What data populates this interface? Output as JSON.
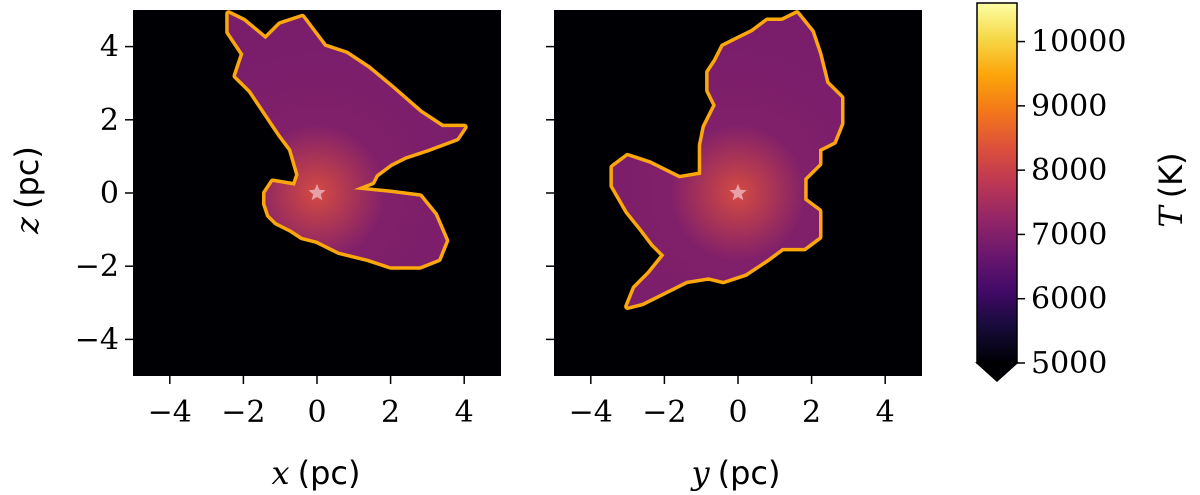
{
  "chart_data": [
    {
      "type": "heatmap",
      "panel": "left",
      "xlabel_var": "x",
      "xlabel_unit": "(pc)",
      "ylabel_var": "z",
      "ylabel_unit": "(pc)",
      "xlim": [
        -5,
        5
      ],
      "ylim": [
        -5,
        5
      ],
      "xticks": [
        -4,
        -2,
        0,
        2,
        4
      ],
      "yticks": [
        -4,
        -2,
        0,
        2,
        4
      ],
      "xtick_labels": [
        "−4",
        "−2",
        "0",
        "2",
        "4"
      ],
      "ytick_labels": [
        "−4",
        "−2",
        "0",
        "2",
        "4"
      ],
      "background_value": 5000,
      "source_marker": {
        "x": 0,
        "y": 0,
        "symbol": "star",
        "color": "#e8a0a8"
      },
      "region": {
        "interior_value": 7000,
        "edge_value": 9500,
        "outline": [
          [
            -2.4,
            4.9
          ],
          [
            -2.0,
            4.7
          ],
          [
            -1.4,
            4.2
          ],
          [
            -1.0,
            4.6
          ],
          [
            -0.4,
            4.8
          ],
          [
            0.2,
            4.0
          ],
          [
            0.8,
            3.8
          ],
          [
            1.4,
            3.4
          ],
          [
            2.0,
            2.9
          ],
          [
            2.8,
            2.2
          ],
          [
            3.4,
            1.8
          ],
          [
            4.0,
            1.8
          ],
          [
            3.8,
            1.5
          ],
          [
            3.0,
            1.2
          ],
          [
            2.4,
            1.0
          ],
          [
            2.0,
            0.8
          ],
          [
            1.6,
            0.5
          ],
          [
            1.5,
            0.3
          ],
          [
            1.0,
            0.1
          ],
          [
            2.0,
            0.0
          ],
          [
            2.8,
            -0.1
          ],
          [
            3.2,
            -0.6
          ],
          [
            3.5,
            -1.3
          ],
          [
            3.3,
            -1.8
          ],
          [
            2.8,
            -2.0
          ],
          [
            2.0,
            -2.0
          ],
          [
            1.4,
            -1.8
          ],
          [
            0.6,
            -1.6
          ],
          [
            0.0,
            -1.3
          ],
          [
            -0.4,
            -1.2
          ],
          [
            -0.7,
            -1.0
          ],
          [
            -1.1,
            -0.8
          ],
          [
            -1.3,
            -0.6
          ],
          [
            -1.4,
            -0.3
          ],
          [
            -1.4,
            0.0
          ],
          [
            -1.2,
            0.3
          ],
          [
            -0.6,
            0.2
          ],
          [
            -0.5,
            0.5
          ],
          [
            -0.7,
            1.2
          ],
          [
            -1.0,
            1.6
          ],
          [
            -1.4,
            2.2
          ],
          [
            -1.8,
            2.8
          ],
          [
            -2.2,
            3.2
          ],
          [
            -2.0,
            3.8
          ],
          [
            -2.4,
            4.4
          ]
        ]
      }
    },
    {
      "type": "heatmap",
      "panel": "right",
      "xlabel_var": "y",
      "xlabel_unit": "(pc)",
      "xlim": [
        -5,
        5
      ],
      "ylim": [
        -5,
        5
      ],
      "xticks": [
        -4,
        -2,
        0,
        2,
        4
      ],
      "xtick_labels": [
        "−4",
        "−2",
        "0",
        "2",
        "4"
      ],
      "background_value": 5000,
      "source_marker": {
        "x": 0,
        "y": 0,
        "symbol": "star",
        "color": "#e8a0a8"
      },
      "region": {
        "interior_value": 7000,
        "edge_value": 9500,
        "outline": [
          [
            0.0,
            4.2
          ],
          [
            0.4,
            4.4
          ],
          [
            0.8,
            4.7
          ],
          [
            1.2,
            4.7
          ],
          [
            1.6,
            4.9
          ],
          [
            2.0,
            4.4
          ],
          [
            2.2,
            3.8
          ],
          [
            2.4,
            3.0
          ],
          [
            2.8,
            2.6
          ],
          [
            2.8,
            1.9
          ],
          [
            2.6,
            1.4
          ],
          [
            2.2,
            1.2
          ],
          [
            2.2,
            0.8
          ],
          [
            1.8,
            0.4
          ],
          [
            1.8,
            -0.2
          ],
          [
            2.2,
            -0.5
          ],
          [
            2.2,
            -1.2
          ],
          [
            1.8,
            -1.5
          ],
          [
            1.2,
            -1.5
          ],
          [
            0.8,
            -1.8
          ],
          [
            0.2,
            -2.2
          ],
          [
            -0.4,
            -2.4
          ],
          [
            -0.8,
            -2.3
          ],
          [
            -1.4,
            -2.4
          ],
          [
            -2.0,
            -2.7
          ],
          [
            -2.6,
            -3.0
          ],
          [
            -3.0,
            -3.1
          ],
          [
            -2.8,
            -2.6
          ],
          [
            -2.4,
            -2.2
          ],
          [
            -2.0,
            -1.7
          ],
          [
            -2.3,
            -1.4
          ],
          [
            -2.6,
            -1.0
          ],
          [
            -3.0,
            -0.5
          ],
          [
            -3.4,
            0.2
          ],
          [
            -3.4,
            0.7
          ],
          [
            -3.0,
            1.0
          ],
          [
            -2.4,
            0.8
          ],
          [
            -1.6,
            0.4
          ],
          [
            -1.0,
            0.5
          ],
          [
            -1.0,
            1.3
          ],
          [
            -0.9,
            1.8
          ],
          [
            -0.6,
            2.4
          ],
          [
            -0.8,
            2.8
          ],
          [
            -0.8,
            3.3
          ],
          [
            -0.6,
            3.6
          ],
          [
            -0.4,
            4.0
          ]
        ]
      }
    },
    {
      "type": "colorbar",
      "label_var": "T",
      "label_unit": "(K)",
      "range": [
        5000,
        10600
      ],
      "ticks": [
        5000,
        6000,
        7000,
        8000,
        9000,
        10000
      ],
      "tick_labels": [
        "5000",
        "6000",
        "7000",
        "8000",
        "9000",
        "10000"
      ],
      "extend": "min",
      "colormap": "inferno",
      "stops": [
        [
          0.0,
          "#000004"
        ],
        [
          0.1,
          "#160b39"
        ],
        [
          0.2,
          "#420a68"
        ],
        [
          0.3,
          "#6a176e"
        ],
        [
          0.4,
          "#932667"
        ],
        [
          0.5,
          "#bc3754"
        ],
        [
          0.6,
          "#dd513a"
        ],
        [
          0.7,
          "#f37819"
        ],
        [
          0.8,
          "#fca50a"
        ],
        [
          0.9,
          "#f6d746"
        ],
        [
          1.0,
          "#fcffa4"
        ]
      ]
    }
  ]
}
